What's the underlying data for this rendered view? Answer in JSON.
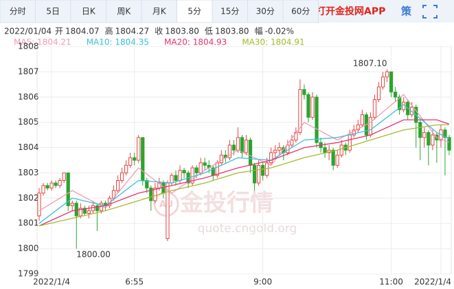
{
  "tabs": [
    "分时",
    "5日",
    "日K",
    "周K",
    "月K",
    "5分",
    "15分",
    "30分",
    "60分"
  ],
  "active_tab": 5,
  "app_link": "打开金投网APP",
  "strategy": "策",
  "info": {
    "date": "2022/01/04",
    "items": [
      {
        "label": "开",
        "value": "1804.07"
      },
      {
        "label": "高",
        "value": "1804.27"
      },
      {
        "label": "收",
        "value": "1803.80"
      },
      {
        "label": "低",
        "value": "1803.80"
      },
      {
        "label": "幅",
        "value": "-0.02%"
      }
    ]
  },
  "watermark": {
    "logo": "AU",
    "title": "金投行情",
    "url": "quote.cngold.org"
  },
  "chart_data": {
    "type": "candlestick",
    "up_color": "#e8433f",
    "down_color": "#2aa52f",
    "xlim": [
      -0.5,
      99.5
    ],
    "xticks": [
      {
        "value": 3,
        "label": "2022/1/4"
      },
      {
        "value": 23,
        "label": "6:55"
      },
      {
        "value": 54,
        "label": "9:00"
      },
      {
        "value": 85,
        "label": "11:00"
      },
      {
        "value": 97,
        "label": "2022/1/4"
      }
    ],
    "ylim": [
      1799,
      1808
    ],
    "yticks": [
      1799,
      1800,
      1801,
      1802,
      1803,
      1804,
      1805,
      1806,
      1807,
      1808
    ],
    "grid": true,
    "open": [
      1801.3,
      1802.2,
      1802.5,
      1802.4,
      1802.6,
      1802.5,
      1802.7,
      1803.0,
      1801.7,
      1801.8,
      1801.3,
      1801.6,
      1801.4,
      1801.5,
      1801.7,
      1801.5,
      1801.8,
      1801.7,
      1802.0,
      1802.3,
      1802.7,
      1803.0,
      1803.3,
      1803.6,
      1803.5,
      1804.4,
      1802.7,
      1802.4,
      1801.9,
      1802.4,
      1802.6,
      1800.4,
      1802.6,
      1802.9,
      1802.7,
      1803.1,
      1803.0,
      1802.6,
      1803.2,
      1803.0,
      1803.4,
      1803.3,
      1803.2,
      1802.9,
      1803.4,
      1803.7,
      1803.6,
      1804.1,
      1803.9,
      1804.4,
      1803.8,
      1804.3,
      1803.3,
      1802.6,
      1803.3,
      1802.9,
      1803.4,
      1803.8,
      1803.9,
      1804.0,
      1803.8,
      1804.1,
      1804.3,
      1804.6,
      1806.3,
      1806.1,
      1805.2,
      1806.0,
      1804.2,
      1804.0,
      1803.8,
      1803.9,
      1803.3,
      1803.7,
      1804.1,
      1803.9,
      1804.5,
      1804.7,
      1804.9,
      1805.3,
      1804.5,
      1805.2,
      1805.9,
      1806.4,
      1806.8,
      1807.0,
      1806.2,
      1806.0,
      1805.5,
      1805.8,
      1805.3,
      1805.6,
      1805.0,
      1804.4,
      1804.6,
      1804.1,
      1804.5,
      1804.3,
      1804.7,
      1804.4
    ],
    "high": [
      1802.4,
      1802.6,
      1802.6,
      1802.7,
      1802.7,
      1802.8,
      1803.0,
      1803.0,
      1801.9,
      1801.9,
      1801.8,
      1801.7,
      1801.7,
      1801.9,
      1801.8,
      1801.9,
      1801.9,
      1802.1,
      1802.5,
      1802.9,
      1803.2,
      1803.5,
      1803.8,
      1803.8,
      1804.5,
      1804.4,
      1802.8,
      1802.5,
      1802.6,
      1802.8,
      1802.7,
      1802.7,
      1803.0,
      1803.1,
      1803.3,
      1803.2,
      1803.1,
      1803.3,
      1803.3,
      1803.6,
      1803.6,
      1803.5,
      1803.3,
      1803.5,
      1803.9,
      1803.9,
      1804.3,
      1804.3,
      1804.8,
      1804.5,
      1804.5,
      1804.4,
      1803.4,
      1803.5,
      1803.4,
      1803.6,
      1804.0,
      1804.1,
      1804.2,
      1804.1,
      1804.3,
      1804.5,
      1804.8,
      1806.7,
      1806.5,
      1806.2,
      1806.2,
      1806.1,
      1804.4,
      1804.2,
      1804.1,
      1804.0,
      1803.9,
      1804.3,
      1804.2,
      1804.7,
      1804.9,
      1805.1,
      1805.5,
      1805.4,
      1805.4,
      1806.1,
      1806.6,
      1807.0,
      1807.1,
      1807.0,
      1806.4,
      1806.1,
      1806.0,
      1805.9,
      1805.8,
      1805.7,
      1805.1,
      1804.8,
      1804.7,
      1804.7,
      1804.6,
      1804.9,
      1804.8,
      1804.5
    ],
    "low": [
      1801.1,
      1802.1,
      1802.3,
      1802.3,
      1802.4,
      1802.4,
      1802.6,
      1801.5,
      1801.5,
      1800.0,
      1801.2,
      1801.3,
      1801.2,
      1801.4,
      1800.7,
      1801.4,
      1801.5,
      1801.6,
      1801.9,
      1802.2,
      1802.6,
      1802.9,
      1803.2,
      1803.3,
      1803.4,
      1802.5,
      1802.2,
      1801.5,
      1801.8,
      1802.3,
      1802.0,
      1800.3,
      1802.5,
      1802.5,
      1802.6,
      1802.8,
      1802.4,
      1802.5,
      1802.8,
      1802.9,
      1803.1,
      1803.0,
      1802.7,
      1802.8,
      1803.3,
      1803.4,
      1803.5,
      1803.7,
      1803.8,
      1803.6,
      1803.7,
      1803.0,
      1802.3,
      1802.5,
      1802.7,
      1802.8,
      1803.3,
      1803.6,
      1803.7,
      1803.5,
      1803.7,
      1804.0,
      1804.2,
      1804.5,
      1805.9,
      1805.0,
      1805.1,
      1804.0,
      1803.8,
      1803.6,
      1803.5,
      1803.1,
      1803.2,
      1803.6,
      1803.7,
      1803.8,
      1804.4,
      1804.6,
      1804.8,
      1804.3,
      1804.4,
      1805.1,
      1805.8,
      1806.3,
      1806.6,
      1806.0,
      1805.8,
      1805.3,
      1805.4,
      1805.1,
      1805.2,
      1804.0,
      1803.5,
      1804.0,
      1803.3,
      1803.9,
      1803.4,
      1804.0,
      1802.9,
      1803.7
    ],
    "close": [
      1802.2,
      1802.5,
      1802.4,
      1802.6,
      1802.5,
      1802.7,
      1803.0,
      1801.7,
      1801.8,
      1801.3,
      1801.6,
      1801.4,
      1801.5,
      1801.7,
      1801.5,
      1801.8,
      1801.7,
      1802.0,
      1802.3,
      1802.7,
      1803.0,
      1803.3,
      1803.6,
      1803.5,
      1804.4,
      1802.7,
      1802.4,
      1801.9,
      1802.4,
      1802.6,
      1802.2,
      1802.6,
      1802.9,
      1802.7,
      1803.1,
      1803.0,
      1802.6,
      1803.2,
      1803.0,
      1803.4,
      1803.3,
      1803.2,
      1802.9,
      1803.4,
      1803.7,
      1803.6,
      1804.1,
      1803.9,
      1804.4,
      1803.8,
      1804.3,
      1803.3,
      1802.6,
      1803.3,
      1802.9,
      1803.4,
      1803.8,
      1803.9,
      1804.0,
      1803.8,
      1804.1,
      1804.3,
      1804.6,
      1806.3,
      1806.1,
      1805.2,
      1806.0,
      1804.2,
      1804.0,
      1803.8,
      1803.9,
      1803.3,
      1803.7,
      1804.1,
      1803.9,
      1804.5,
      1804.7,
      1804.9,
      1805.3,
      1804.5,
      1805.2,
      1805.9,
      1806.4,
      1806.8,
      1807.0,
      1806.2,
      1806.0,
      1805.5,
      1805.8,
      1805.3,
      1805.6,
      1805.0,
      1804.4,
      1804.6,
      1804.1,
      1804.5,
      1804.3,
      1804.7,
      1804.4,
      1803.9
    ],
    "series": [
      {
        "name": "MA5",
        "legend_label": "MA5: 1804.21",
        "color": "#f29ab8",
        "x": [
          0,
          8,
          16,
          24,
          32,
          40,
          48,
          56,
          64,
          72,
          80,
          88,
          96,
          99
        ],
        "values": [
          1801.5,
          1802.3,
          1801.6,
          1803.2,
          1802.2,
          1803.1,
          1803.9,
          1803.3,
          1805.0,
          1804.3,
          1805.0,
          1806.1,
          1804.4,
          1804.21
        ]
      },
      {
        "name": "MA10",
        "legend_label": "MA10: 1804.35",
        "color": "#3bc0d6",
        "x": [
          0,
          8,
          16,
          24,
          32,
          40,
          48,
          56,
          64,
          72,
          80,
          88,
          96,
          99
        ],
        "values": [
          1801.0,
          1802.0,
          1801.7,
          1802.7,
          1802.6,
          1803.0,
          1803.6,
          1803.5,
          1804.3,
          1804.4,
          1804.7,
          1805.7,
          1804.6,
          1804.35
        ]
      },
      {
        "name": "MA20",
        "legend_label": "MA20: 1804.93",
        "color": "#e2356f",
        "x": [
          0,
          8,
          16,
          24,
          32,
          40,
          48,
          56,
          64,
          72,
          80,
          88,
          96,
          99
        ],
        "values": [
          1800.9,
          1801.5,
          1801.7,
          1802.2,
          1802.5,
          1802.8,
          1803.2,
          1803.5,
          1804.0,
          1804.2,
          1804.5,
          1805.1,
          1805.1,
          1804.93
        ]
      },
      {
        "name": "MA30",
        "legend_label": "MA30: 1804.91",
        "color": "#a4b92f",
        "x": [
          0,
          8,
          16,
          24,
          32,
          40,
          48,
          56,
          64,
          72,
          80,
          88,
          96,
          99
        ],
        "values": [
          1800.9,
          1801.2,
          1801.5,
          1801.9,
          1802.3,
          1802.6,
          1803.0,
          1803.2,
          1803.6,
          1803.9,
          1804.3,
          1804.7,
          1804.9,
          1804.91
        ]
      }
    ],
    "annotations": [
      {
        "index": 84,
        "field": "high",
        "label": "1807.10"
      },
      {
        "index": 9,
        "field": "low",
        "label": "1800.00"
      }
    ]
  }
}
